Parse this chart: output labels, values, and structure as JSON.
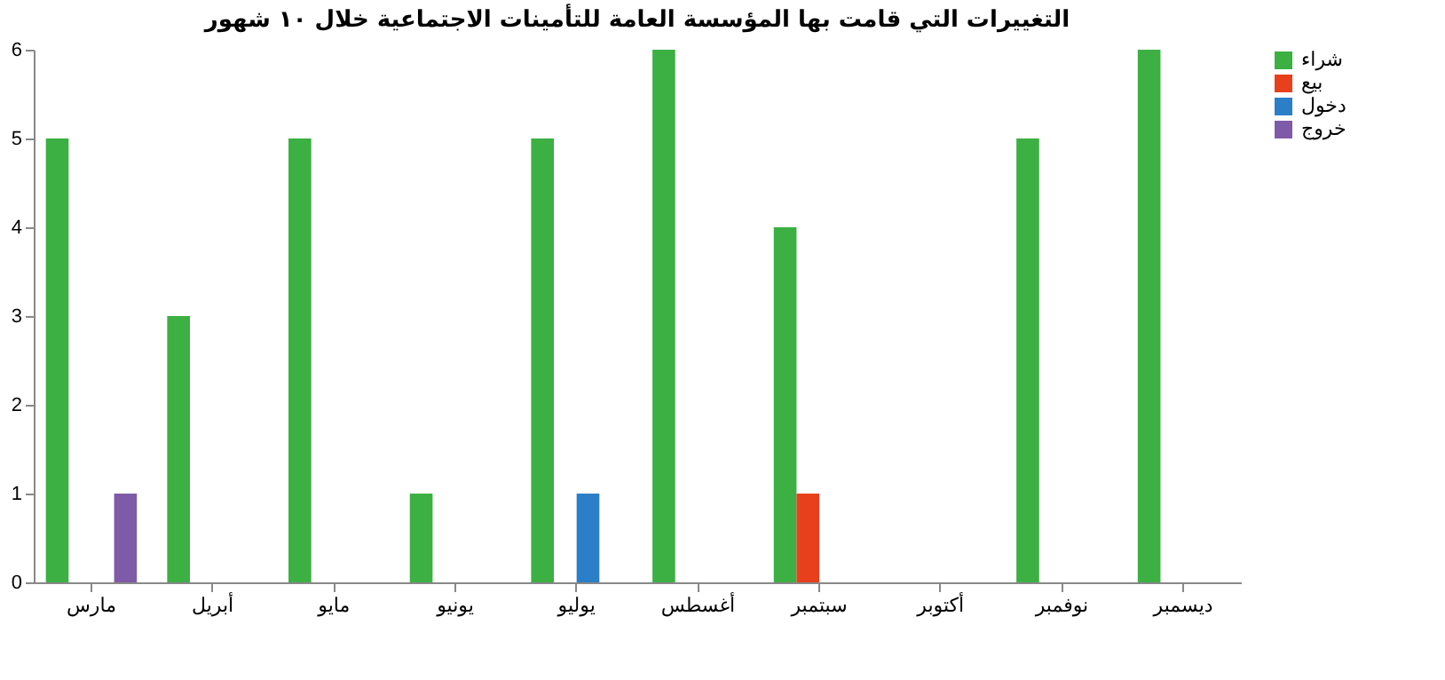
{
  "chart_data": {
    "type": "bar",
    "title": "التغييرات التي قامت بها المؤسسة العامة للتأمينات الاجتماعية خلال ١٠ شهور",
    "categories": [
      "مارس",
      "أبريل",
      "مايو",
      "يونيو",
      "يوليو",
      "أغسطس",
      "سبتمبر",
      "أكتوبر",
      "نوفمبر",
      "ديسمبر"
    ],
    "series": [
      {
        "name": "شراء",
        "color": "#3cb043",
        "values": [
          5,
          3,
          5,
          1,
          5,
          6,
          4,
          0,
          5,
          6
        ]
      },
      {
        "name": "بيع",
        "color": "#e8401c",
        "values": [
          0,
          0,
          0,
          0,
          0,
          0,
          1,
          0,
          0,
          0
        ]
      },
      {
        "name": "دخول",
        "color": "#2a7fc8",
        "values": [
          0,
          0,
          0,
          0,
          1,
          0,
          0,
          0,
          0,
          0
        ]
      },
      {
        "name": "خروج",
        "color": "#7e5ba8",
        "values": [
          1,
          0,
          0,
          0,
          0,
          0,
          0,
          0,
          0,
          0
        ]
      }
    ],
    "ylim": [
      0,
      6
    ],
    "yticks": [
      0,
      1,
      2,
      3,
      4,
      5,
      6
    ],
    "grid": false,
    "legend": "right"
  }
}
